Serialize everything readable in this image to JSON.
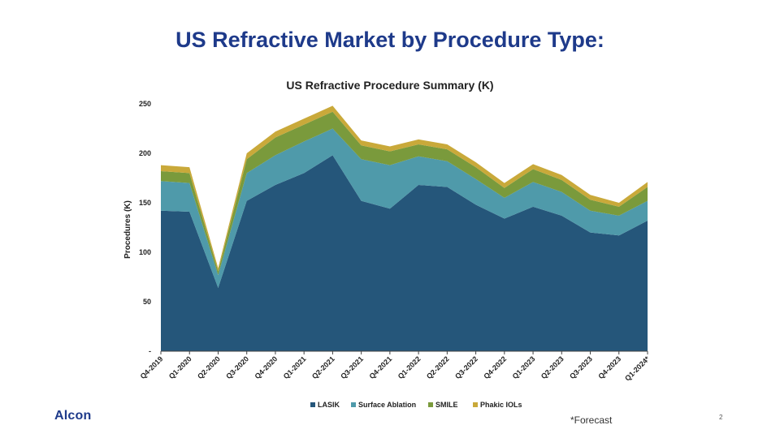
{
  "slide": {
    "title": "US Refractive Market by Procedure Type:",
    "logo_text": "Alcon",
    "footnote": "*Forecast",
    "page_number": "2"
  },
  "chart_data": {
    "type": "area",
    "stacked": true,
    "title": "US Refractive Procedure Summary (K)",
    "xlabel": "",
    "ylabel": "Procedures (K)",
    "ylim": [
      0,
      250
    ],
    "yticks": [
      0,
      50,
      100,
      150,
      200,
      250
    ],
    "ytick_labels": [
      "-",
      "50",
      "100",
      "150",
      "200",
      "250"
    ],
    "categories": [
      "Q4-2019",
      "Q1-2020",
      "Q2-2020",
      "Q3-2020",
      "Q4-2020",
      "Q1-2021",
      "Q2-2021",
      "Q3-2021",
      "Q4-2021",
      "Q1-2022",
      "Q2-2022",
      "Q3-2022",
      "Q4-2022",
      "Q1-2023",
      "Q2-2023",
      "Q3-2023",
      "Q4-2023",
      "Q1-2024*"
    ],
    "legend_position": "bottom",
    "grid": false,
    "series": [
      {
        "name": "LASIK",
        "color": "#25567a",
        "values": [
          142,
          141,
          64,
          152,
          168,
          180,
          198,
          152,
          144,
          168,
          166,
          148,
          134,
          146,
          137,
          120,
          117,
          132
        ]
      },
      {
        "name": "Surface Ablation",
        "color": "#4f9aaa",
        "values": [
          30,
          29,
          13,
          28,
          30,
          32,
          27,
          42,
          44,
          29,
          26,
          26,
          21,
          25,
          24,
          22,
          20,
          20
        ]
      },
      {
        "name": "SMILE",
        "color": "#7a9a3c",
        "values": [
          10,
          10,
          4,
          14,
          18,
          17,
          17,
          14,
          14,
          12,
          12,
          12,
          10,
          13,
          12,
          11,
          9,
          14
        ]
      },
      {
        "name": "Phakic IOLs",
        "color": "#c9a93a",
        "values": [
          6,
          6,
          3,
          6,
          6,
          6,
          6,
          5,
          5,
          5,
          5,
          5,
          5,
          5,
          5,
          5,
          4,
          5
        ]
      }
    ]
  }
}
